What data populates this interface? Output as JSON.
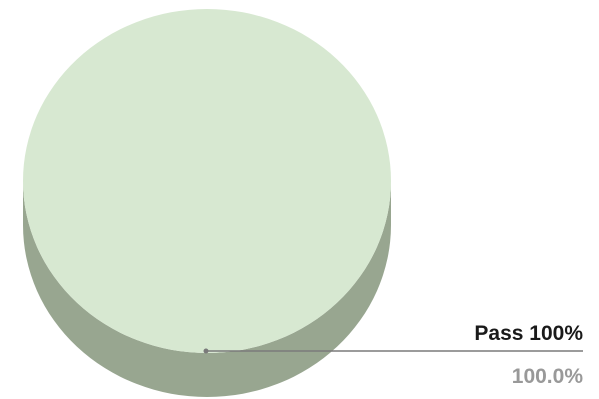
{
  "chart_data": {
    "type": "pie",
    "style": "3d",
    "slices": [
      {
        "label": "Pass 100%",
        "value": 100.0,
        "percent_label": "100.0%",
        "color": "#d7e8d1",
        "side_color": "#98a690"
      }
    ],
    "label_color": "#1a1a1a",
    "value_color": "#999999",
    "leader_color": "#7a7a7a"
  }
}
